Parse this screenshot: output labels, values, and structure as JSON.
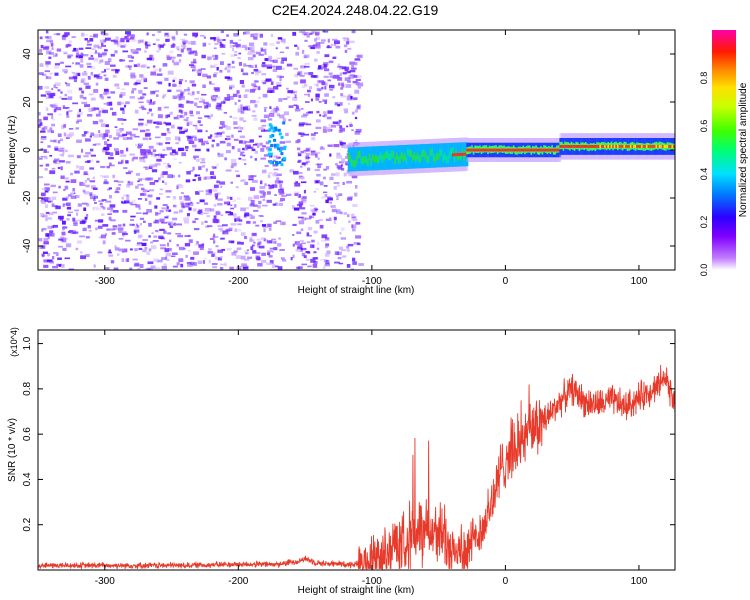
{
  "title": "C2E4.2024.248.04.22.G19",
  "colors": {
    "snr_line": "#e83a2a",
    "ridge_high": "#ff3b1a",
    "ridge_mid": "#22dd44",
    "ridge_low": "#00c8ff",
    "noise": "#6a1fff"
  },
  "spectrogram": {
    "type": "heatmap",
    "xlabel": "Height of straight line (km)",
    "ylabel": "Frequency (Hz)",
    "xlim": [
      -350,
      127
    ],
    "ylim": [
      -50,
      50
    ],
    "xticks": [
      -300,
      -200,
      -100,
      0,
      100
    ],
    "yticks": [
      -40,
      -20,
      0,
      20,
      40
    ],
    "colorbar": {
      "label": "Normalized spectral amplitude",
      "range": [
        0,
        1
      ],
      "ticks": [
        "0.0",
        "0.2",
        "0.4",
        "0.6",
        "0.8"
      ],
      "colormap": [
        "#ffffff",
        "#a000ff",
        "#3c00ff",
        "#0060ff",
        "#00d0ff",
        "#00ff80",
        "#40ff00",
        "#c0ff00",
        "#ffe000",
        "#ff8000",
        "#ff1a00",
        "#ff00aa"
      ]
    }
  },
  "chart_data": {
    "type": "line",
    "title": "C2E4.2024.248.04.22.G19",
    "xlabel": "Height of straight line (km)",
    "ylabel": "SNR (10 * v/v)",
    "y_multiplier": "(x10^4)",
    "xlim": [
      -350,
      127
    ],
    "ylim": [
      0,
      1.06
    ],
    "xticks": [
      -300,
      -200,
      -100,
      0,
      100
    ],
    "yticks": [
      "0.2",
      "0.4",
      "0.6",
      "0.8",
      "1.0"
    ],
    "x": [
      -350,
      -300,
      -250,
      -200,
      -170,
      -155,
      -150,
      -140,
      -120,
      -100,
      -90,
      -80,
      -70,
      -60,
      -50,
      -40,
      -30,
      -20,
      -10,
      0,
      10,
      20,
      30,
      40,
      50,
      60,
      70,
      80,
      90,
      100,
      110,
      120,
      127
    ],
    "y": [
      0.02,
      0.02,
      0.02,
      0.025,
      0.025,
      0.04,
      0.05,
      0.03,
      0.025,
      0.03,
      0.07,
      0.12,
      0.15,
      0.18,
      0.16,
      0.1,
      0.08,
      0.14,
      0.3,
      0.5,
      0.55,
      0.62,
      0.66,
      0.74,
      0.8,
      0.74,
      0.73,
      0.75,
      0.72,
      0.76,
      0.8,
      0.85,
      0.74
    ]
  }
}
